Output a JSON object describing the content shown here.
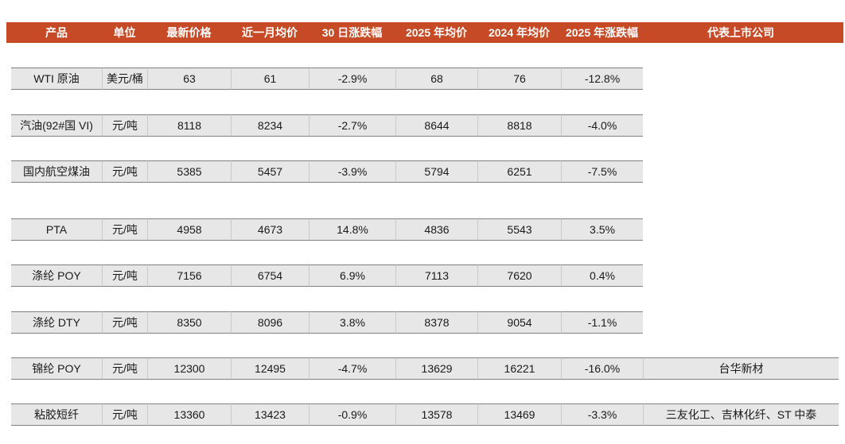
{
  "table": {
    "headers": [
      "产品",
      "单位",
      "最新价格",
      "近一月均价",
      "30 日涨跌幅",
      "2025 年均价",
      "2024 年均价",
      "2025 年涨跌幅",
      "代表上市公司"
    ],
    "rows": [
      {
        "product": "WTI 原油",
        "unit": "美元/桶",
        "latest_price": "63",
        "month_avg_price": "61",
        "change_30d": "-2.9%",
        "avg_price_2025": "68",
        "avg_price_2024": "76",
        "change_2025": "-12.8%",
        "companies": ""
      },
      {
        "product": "汽油(92#国 VI)",
        "unit": "元/吨",
        "latest_price": "8118",
        "month_avg_price": "8234",
        "change_30d": "-2.7%",
        "avg_price_2025": "8644",
        "avg_price_2024": "8818",
        "change_2025": "-4.0%",
        "companies": ""
      },
      {
        "product": "国内航空煤油",
        "unit": "元/吨",
        "latest_price": "5385",
        "month_avg_price": "5457",
        "change_30d": "-3.9%",
        "avg_price_2025": "5794",
        "avg_price_2024": "6251",
        "change_2025": "-7.5%",
        "companies": ""
      },
      {
        "product": "PTA",
        "unit": "元/吨",
        "latest_price": "4958",
        "month_avg_price": "4673",
        "change_30d": "14.8%",
        "avg_price_2025": "4836",
        "avg_price_2024": "5543",
        "change_2025": "3.5%",
        "companies": ""
      },
      {
        "product": "涤纶 POY",
        "unit": "元/吨",
        "latest_price": "7156",
        "month_avg_price": "6754",
        "change_30d": "6.9%",
        "avg_price_2025": "7113",
        "avg_price_2024": "7620",
        "change_2025": "0.4%",
        "companies": ""
      },
      {
        "product": "涤纶 DTY",
        "unit": "元/吨",
        "latest_price": "8350",
        "month_avg_price": "8096",
        "change_30d": "3.8%",
        "avg_price_2025": "8378",
        "avg_price_2024": "9054",
        "change_2025": "-1.1%",
        "companies": ""
      },
      {
        "product": "锦纶 POY",
        "unit": "元/吨",
        "latest_price": "12300",
        "month_avg_price": "12495",
        "change_30d": "-4.7%",
        "avg_price_2025": "13629",
        "avg_price_2024": "16221",
        "change_2025": "-16.0%",
        "companies": "台华新材"
      },
      {
        "product": "粘胶短纤",
        "unit": "元/吨",
        "latest_price": "13360",
        "month_avg_price": "13423",
        "change_30d": "-0.9%",
        "avg_price_2025": "13578",
        "avg_price_2024": "13469",
        "change_2025": "-3.3%",
        "companies": "三友化工、吉林化纤、ST 中泰"
      }
    ]
  },
  "colors": {
    "header_bg": "#C64A26",
    "header_text": "#FFFFFF",
    "row_bg": "#E7E7E7",
    "row_border": "#7F7F7F",
    "divider": "#C9C9C9",
    "text_color": "#1A1A1A"
  }
}
